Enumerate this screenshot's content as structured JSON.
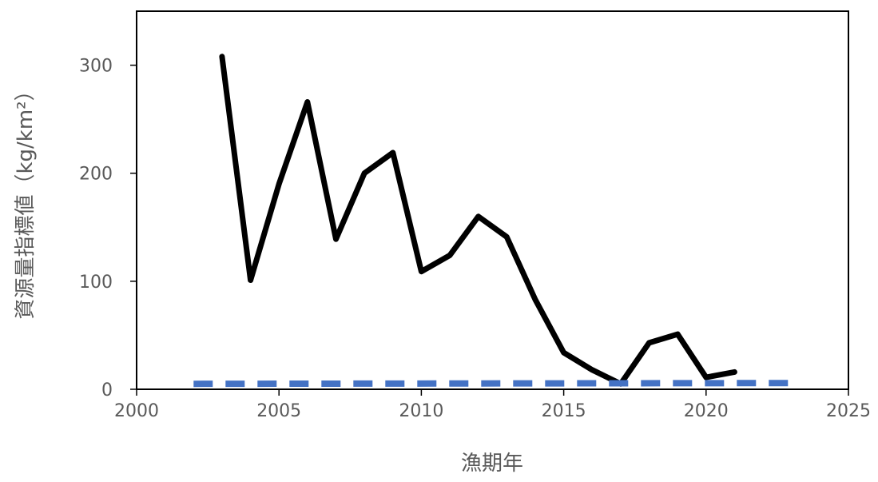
{
  "chart_data": {
    "type": "line",
    "title": "",
    "xlabel": "漁期年",
    "ylabel": "資源量指標値（kg/km²）",
    "xlim": [
      2000,
      2025
    ],
    "ylim": [
      0,
      350
    ],
    "xticks": [
      2000,
      2005,
      2010,
      2015,
      2020,
      2025
    ],
    "yticks": [
      0,
      100,
      200,
      300
    ],
    "grid": false,
    "legend": "none",
    "series": [
      {
        "style": "solid",
        "color": "#000000",
        "x": [
          2003,
          2004,
          2005,
          2006,
          2007,
          2008,
          2009,
          2010,
          2011,
          2012,
          2013,
          2014,
          2015,
          2016,
          2017,
          2018,
          2019,
          2020,
          2021
        ],
        "y": [
          308,
          101,
          190,
          266,
          139,
          200,
          219,
          109,
          124,
          160,
          141,
          83,
          34,
          18,
          5,
          43,
          51,
          11,
          16
        ]
      },
      {
        "style": "dashed",
        "color": "#4472C4",
        "x": [
          2002,
          2023
        ],
        "y": [
          5,
          5.8
        ]
      }
    ]
  }
}
